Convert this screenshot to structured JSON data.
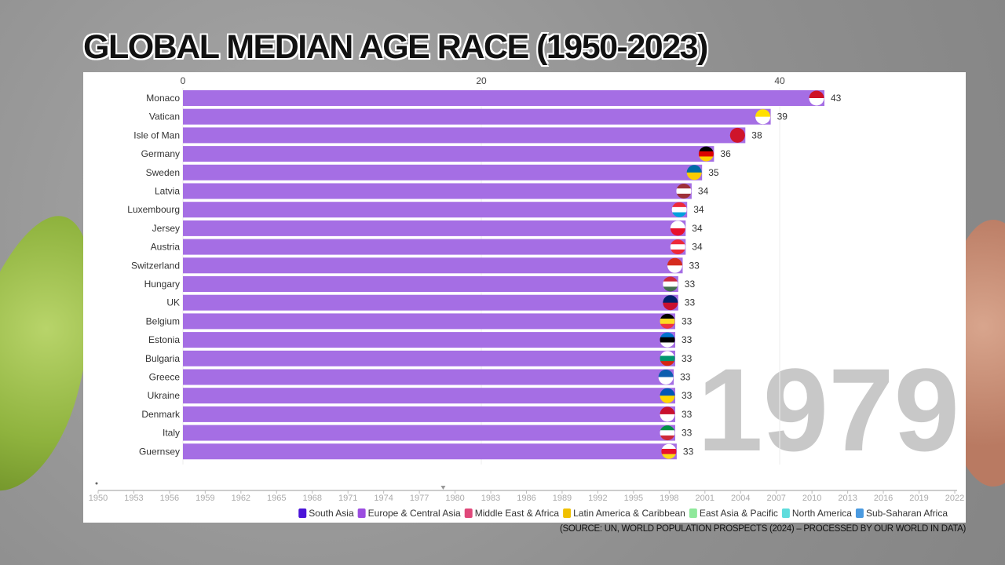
{
  "title": "GLOBAL MEDIAN AGE RACE (1950-2023)",
  "source": "(SOURCE:   UN, WORLD POPULATION PROSPECTS (2024)  – PROCESSED BY OUR WORLD IN DATA)",
  "chart_data": {
    "type": "bar",
    "orientation": "horizontal",
    "current_year": "1979",
    "xlim": [
      0,
      43
    ],
    "x_ticks": [
      "0",
      "20",
      "40"
    ],
    "grid": true,
    "bar_color": "#a066e3",
    "bars": [
      {
        "country": "Monaco",
        "value": 43.0,
        "label": "43",
        "flag": [
          "#ce1126",
          "#ffffff"
        ]
      },
      {
        "country": "Vatican",
        "value": 39.4,
        "label": "39",
        "flag": [
          "#ffe000",
          "#ffffff"
        ]
      },
      {
        "country": "Isle of Man",
        "value": 37.7,
        "label": "38",
        "flag": [
          "#cf142b",
          "#cf142b"
        ]
      },
      {
        "country": "Germany",
        "value": 35.6,
        "label": "36",
        "flag": [
          "#000000",
          "#dd0000",
          "#ffce00"
        ]
      },
      {
        "country": "Sweden",
        "value": 34.8,
        "label": "35",
        "flag": [
          "#006aa7",
          "#fecc00"
        ]
      },
      {
        "country": "Latvia",
        "value": 34.1,
        "label": "34",
        "flag": [
          "#9e3039",
          "#ffffff",
          "#9e3039"
        ]
      },
      {
        "country": "Luxembourg",
        "value": 33.8,
        "label": "34",
        "flag": [
          "#ed2939",
          "#ffffff",
          "#00a1de"
        ]
      },
      {
        "country": "Jersey",
        "value": 33.7,
        "label": "34",
        "flag": [
          "#ffffff",
          "#e8112d"
        ]
      },
      {
        "country": "Austria",
        "value": 33.7,
        "label": "34",
        "flag": [
          "#ed2939",
          "#ffffff",
          "#ed2939"
        ]
      },
      {
        "country": "Switzerland",
        "value": 33.5,
        "label": "33",
        "flag": [
          "#d52b1e",
          "#ffffff"
        ]
      },
      {
        "country": "Hungary",
        "value": 33.2,
        "label": "33",
        "flag": [
          "#cd2a3e",
          "#ffffff",
          "#436f4d"
        ]
      },
      {
        "country": "UK",
        "value": 33.2,
        "label": "33",
        "flag": [
          "#012169",
          "#c8102e"
        ]
      },
      {
        "country": "Belgium",
        "value": 33.0,
        "label": "33",
        "flag": [
          "#000000",
          "#fdda24",
          "#ef3340"
        ]
      },
      {
        "country": "Estonia",
        "value": 33.0,
        "label": "33",
        "flag": [
          "#0072ce",
          "#000000",
          "#ffffff"
        ]
      },
      {
        "country": "Bulgaria",
        "value": 33.0,
        "label": "33",
        "flag": [
          "#ffffff",
          "#00966e",
          "#d62612"
        ]
      },
      {
        "country": "Greece",
        "value": 32.9,
        "label": "33",
        "flag": [
          "#0d5eaf",
          "#ffffff"
        ]
      },
      {
        "country": "Ukraine",
        "value": 33.0,
        "label": "33",
        "flag": [
          "#0057b7",
          "#ffd700"
        ]
      },
      {
        "country": "Denmark",
        "value": 33.0,
        "label": "33",
        "flag": [
          "#c8102e",
          "#ffffff"
        ]
      },
      {
        "country": "Italy",
        "value": 33.0,
        "label": "33",
        "flag": [
          "#009246",
          "#ffffff",
          "#ce2b37"
        ]
      },
      {
        "country": "Guernsey",
        "value": 33.1,
        "label": "33",
        "flag": [
          "#ffffff",
          "#e8112d",
          "#f9dd16"
        ]
      }
    ],
    "timeline": {
      "start": 1950,
      "end": 2023,
      "current": 1979,
      "ticks": [
        "1950",
        "1953",
        "1956",
        "1959",
        "1962",
        "1965",
        "1968",
        "1971",
        "1974",
        "1977",
        "1980",
        "1983",
        "1986",
        "1989",
        "1992",
        "1995",
        "1998",
        "2001",
        "2004",
        "2007",
        "2010",
        "2013",
        "2016",
        "2019",
        "2022"
      ]
    },
    "legend": [
      {
        "name": "South Asia",
        "color": "#4a14d8"
      },
      {
        "name": "Europe & Central Asia",
        "color": "#9b4de0"
      },
      {
        "name": "Middle East & Africa",
        "color": "#e0487a"
      },
      {
        "name": "Latin America & Caribbean",
        "color": "#f0c000"
      },
      {
        "name": "East Asia & Pacific",
        "color": "#8ee89a"
      },
      {
        "name": "North America",
        "color": "#5edcdc"
      },
      {
        "name": "Sub-Saharan Africa",
        "color": "#4a9ae0"
      }
    ],
    "legend_placement": "bottom-right"
  }
}
